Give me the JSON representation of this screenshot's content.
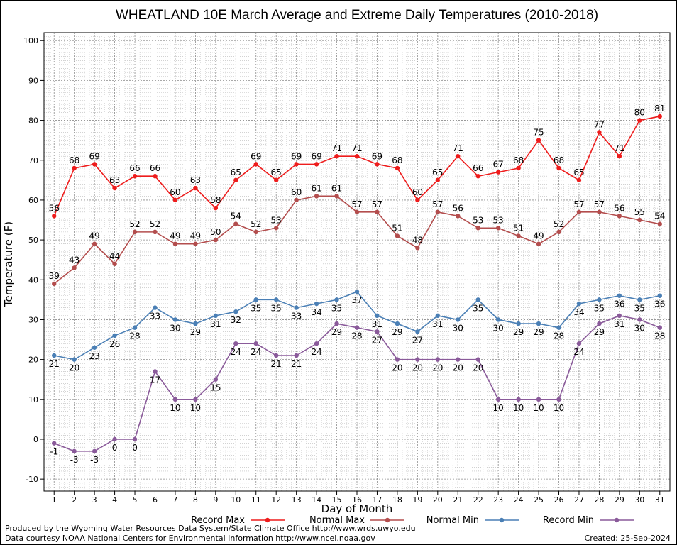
{
  "footer": {
    "produced_by": "Produced by the Wyoming Water Resources Data System/State Climate Office http://www.wrds.uwyo.edu",
    "courtesy": "Data courtesy NOAA National Centers for Environmental Information http://www.ncei.noaa.gov",
    "created": "Created:  25-Sep-2024"
  },
  "chart_data": {
    "type": "line",
    "title": "WHEATLAND 10E March Average and Extreme Daily Temperatures (2010-2018)",
    "xlabel": "Day of Month",
    "ylabel": "Temperature (F)",
    "ylim": [
      -13,
      102
    ],
    "yticks": [
      -10,
      0,
      10,
      20,
      30,
      40,
      50,
      60,
      70,
      80,
      90,
      100
    ],
    "xlim": [
      0.5,
      31.5
    ],
    "x": [
      1,
      2,
      3,
      4,
      5,
      6,
      7,
      8,
      9,
      10,
      11,
      12,
      13,
      14,
      15,
      16,
      17,
      18,
      19,
      20,
      21,
      22,
      23,
      24,
      25,
      26,
      27,
      28,
      29,
      30,
      31
    ],
    "grid": true,
    "legend_position": "bottom",
    "series": [
      {
        "name": "Record Max",
        "color": "#ee1c1c",
        "label_position": "above",
        "values": [
          56,
          68,
          69,
          63,
          66,
          66,
          60,
          63,
          58,
          65,
          69,
          65,
          69,
          69,
          71,
          71,
          69,
          68,
          60,
          65,
          71,
          66,
          67,
          68,
          75,
          68,
          65,
          77,
          71,
          80,
          81
        ]
      },
      {
        "name": "Normal Max",
        "color": "#b34d4d",
        "label_position": "above",
        "values": [
          39,
          43,
          49,
          44,
          52,
          52,
          49,
          49,
          50,
          54,
          52,
          53,
          60,
          61,
          61,
          57,
          57,
          51,
          48,
          57,
          56,
          53,
          53,
          51,
          49,
          52,
          57,
          57,
          56,
          55,
          54
        ]
      },
      {
        "name": "Normal Min",
        "color": "#4a7fb5",
        "label_position": "below",
        "values": [
          21,
          20,
          23,
          26,
          28,
          33,
          30,
          29,
          31,
          32,
          35,
          35,
          33,
          34,
          35,
          37,
          31,
          29,
          27,
          31,
          30,
          35,
          30,
          29,
          29,
          28,
          34,
          35,
          36,
          35,
          36
        ]
      },
      {
        "name": "Record Min",
        "color": "#8a5a9a",
        "label_position": "below",
        "values": [
          -1,
          -3,
          -3,
          0,
          0,
          17,
          10,
          10,
          15,
          24,
          24,
          21,
          21,
          24,
          29,
          28,
          27,
          20,
          20,
          20,
          20,
          20,
          10,
          10,
          10,
          10,
          24,
          29,
          31,
          30,
          28
        ]
      }
    ]
  }
}
